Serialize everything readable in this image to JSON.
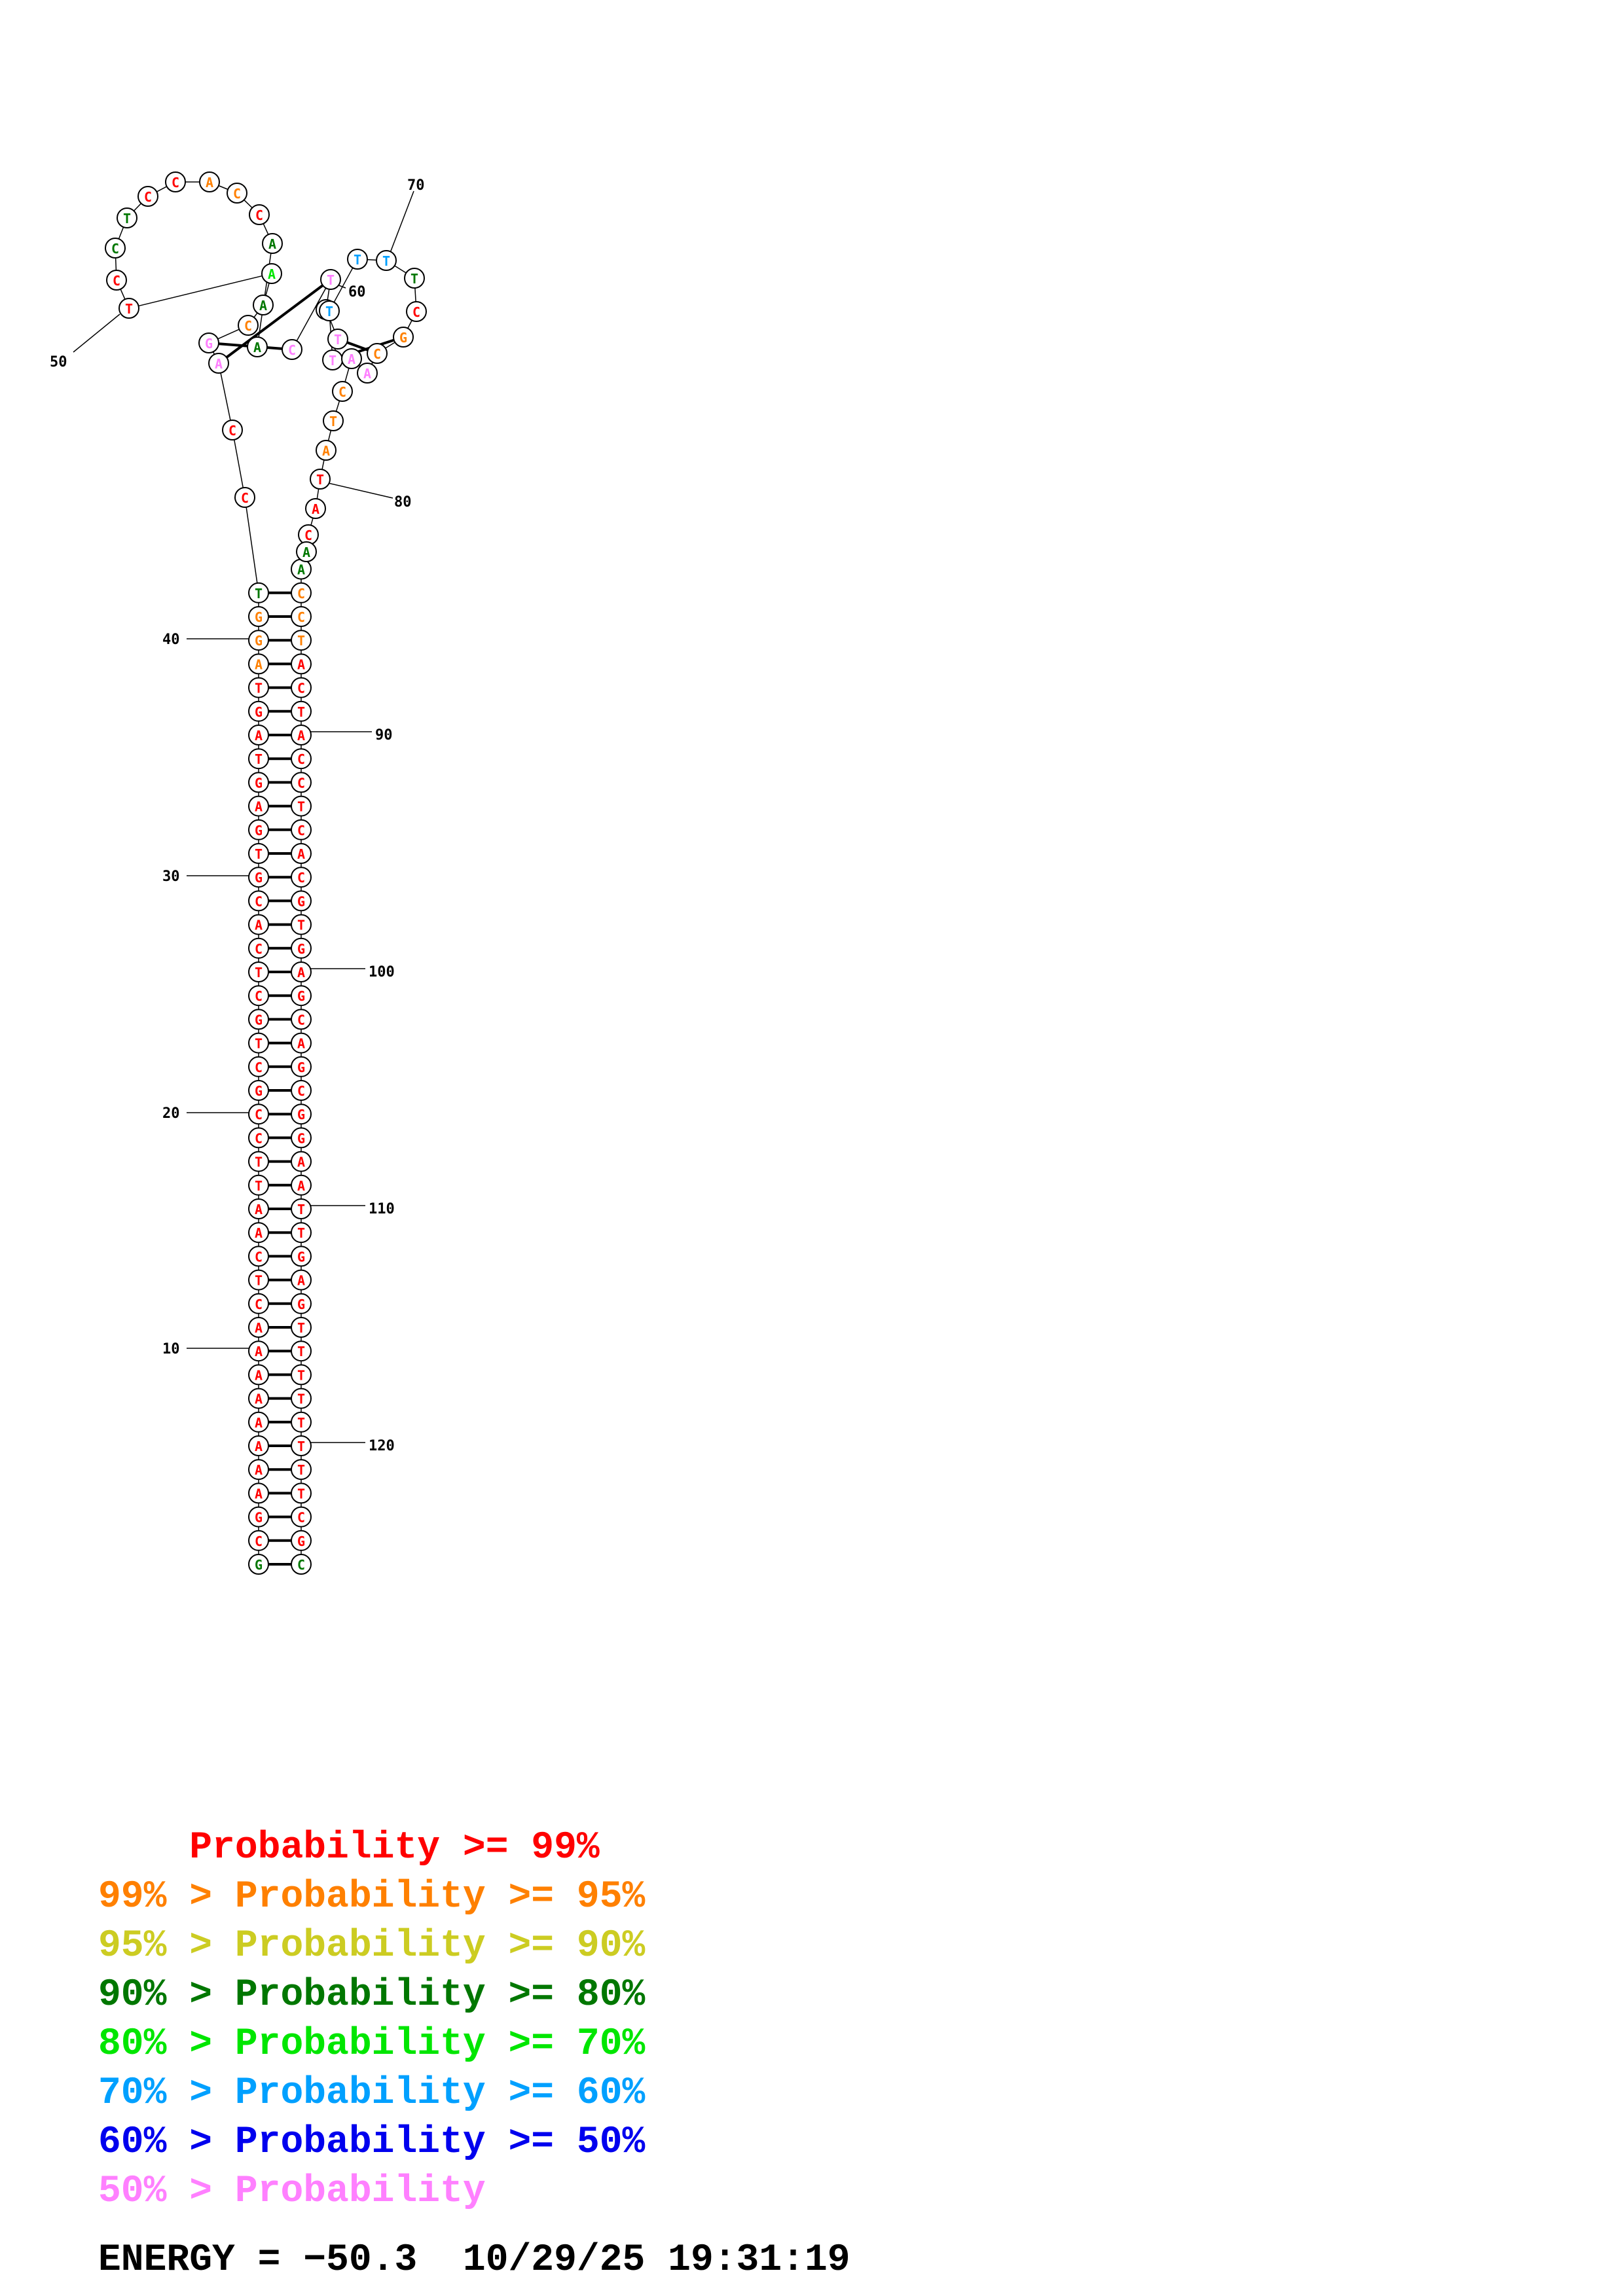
{
  "colors": {
    "p99": "#ff0000",
    "p95": "#ff8000",
    "p90": "#cccc22",
    "p80": "#007700",
    "p70": "#00e600",
    "p60": "#00a0ff",
    "p50": "#0000ee",
    "plow": "#ff80ff"
  },
  "structure": {
    "left_strand": [
      {
        "n": 1,
        "b": "G",
        "c": "p80"
      },
      {
        "n": 2,
        "b": "C",
        "c": "p99"
      },
      {
        "n": 3,
        "b": "G",
        "c": "p99"
      },
      {
        "n": 4,
        "b": "A",
        "c": "p99"
      },
      {
        "n": 5,
        "b": "A",
        "c": "p99"
      },
      {
        "n": 6,
        "b": "A",
        "c": "p99"
      },
      {
        "n": 7,
        "b": "A",
        "c": "p99"
      },
      {
        "n": 8,
        "b": "A",
        "c": "p99"
      },
      {
        "n": 9,
        "b": "A",
        "c": "p99"
      },
      {
        "n": 10,
        "b": "A",
        "c": "p99"
      },
      {
        "n": 11,
        "b": "A",
        "c": "p99"
      },
      {
        "n": 12,
        "b": "C",
        "c": "p99"
      },
      {
        "n": 13,
        "b": "T",
        "c": "p99"
      },
      {
        "n": 14,
        "b": "C",
        "c": "p99"
      },
      {
        "n": 15,
        "b": "A",
        "c": "p99"
      },
      {
        "n": 16,
        "b": "A",
        "c": "p99"
      },
      {
        "n": 17,
        "b": "T",
        "c": "p99"
      },
      {
        "n": 18,
        "b": "T",
        "c": "p99"
      },
      {
        "n": 19,
        "b": "C",
        "c": "p99"
      },
      {
        "n": 20,
        "b": "C",
        "c": "p99"
      },
      {
        "n": 21,
        "b": "G",
        "c": "p99"
      },
      {
        "n": 22,
        "b": "C",
        "c": "p99"
      },
      {
        "n": 23,
        "b": "T",
        "c": "p99"
      },
      {
        "n": 24,
        "b": "G",
        "c": "p99"
      },
      {
        "n": 25,
        "b": "C",
        "c": "p99"
      },
      {
        "n": 26,
        "b": "T",
        "c": "p99"
      },
      {
        "n": 27,
        "b": "C",
        "c": "p99"
      },
      {
        "n": 28,
        "b": "A",
        "c": "p99"
      },
      {
        "n": 29,
        "b": "C",
        "c": "p99"
      },
      {
        "n": 30,
        "b": "G",
        "c": "p99"
      },
      {
        "n": 31,
        "b": "T",
        "c": "p99"
      },
      {
        "n": 32,
        "b": "G",
        "c": "p99"
      },
      {
        "n": 33,
        "b": "A",
        "c": "p99"
      },
      {
        "n": 34,
        "b": "G",
        "c": "p99"
      },
      {
        "n": 35,
        "b": "T",
        "c": "p99"
      },
      {
        "n": 36,
        "b": "A",
        "c": "p99"
      },
      {
        "n": 37,
        "b": "G",
        "c": "p99"
      },
      {
        "n": 38,
        "b": "T",
        "c": "p99"
      },
      {
        "n": 39,
        "b": "A",
        "c": "p95"
      },
      {
        "n": 40,
        "b": "G",
        "c": "p95"
      },
      {
        "n": 41,
        "b": "G",
        "c": "p95"
      },
      {
        "n": 42,
        "b": "T",
        "c": "p80"
      }
    ],
    "right_strand": [
      {
        "n": 125,
        "b": "C",
        "c": "p80"
      },
      {
        "n": 124,
        "b": "G",
        "c": "p99"
      },
      {
        "n": 123,
        "b": "C",
        "c": "p99"
      },
      {
        "n": 122,
        "b": "T",
        "c": "p99"
      },
      {
        "n": 121,
        "b": "T",
        "c": "p99"
      },
      {
        "n": 120,
        "b": "T",
        "c": "p99"
      },
      {
        "n": 119,
        "b": "T",
        "c": "p99"
      },
      {
        "n": 118,
        "b": "T",
        "c": "p99"
      },
      {
        "n": 117,
        "b": "T",
        "c": "p99"
      },
      {
        "n": 116,
        "b": "T",
        "c": "p99"
      },
      {
        "n": 115,
        "b": "T",
        "c": "p99"
      },
      {
        "n": 114,
        "b": "G",
        "c": "p99"
      },
      {
        "n": 113,
        "b": "A",
        "c": "p99"
      },
      {
        "n": 112,
        "b": "G",
        "c": "p99"
      },
      {
        "n": 111,
        "b": "T",
        "c": "p99"
      },
      {
        "n": 110,
        "b": "T",
        "c": "p99"
      },
      {
        "n": 109,
        "b": "A",
        "c": "p99"
      },
      {
        "n": 108,
        "b": "A",
        "c": "p99"
      },
      {
        "n": 107,
        "b": "G",
        "c": "p99"
      },
      {
        "n": 106,
        "b": "G",
        "c": "p99"
      },
      {
        "n": 105,
        "b": "C",
        "c": "p99"
      },
      {
        "n": 104,
        "b": "G",
        "c": "p99"
      },
      {
        "n": 103,
        "b": "A",
        "c": "p99"
      },
      {
        "n": 102,
        "b": "C",
        "c": "p99"
      },
      {
        "n": 101,
        "b": "G",
        "c": "p99"
      },
      {
        "n": 100,
        "b": "A",
        "c": "p99"
      },
      {
        "n": 99,
        "b": "G",
        "c": "p99"
      },
      {
        "n": 98,
        "b": "T",
        "c": "p99"
      },
      {
        "n": 97,
        "b": "G",
        "c": "p99"
      },
      {
        "n": 96,
        "b": "C",
        "c": "p99"
      },
      {
        "n": 95,
        "b": "A",
        "c": "p99"
      },
      {
        "n": 94,
        "b": "C",
        "c": "p99"
      },
      {
        "n": 93,
        "b": "T",
        "c": "p99"
      },
      {
        "n": 92,
        "b": "C",
        "c": "p99"
      },
      {
        "n": 91,
        "b": "C",
        "c": "p99"
      },
      {
        "n": 90,
        "b": "A",
        "c": "p99"
      },
      {
        "n": 89,
        "b": "T",
        "c": "p99"
      },
      {
        "n": 88,
        "b": "C",
        "c": "p99"
      },
      {
        "n": 87,
        "b": "A",
        "c": "p99"
      },
      {
        "n": 86,
        "b": "T",
        "c": "p95"
      },
      {
        "n": 85,
        "b": "C",
        "c": "p95"
      },
      {
        "n": 84,
        "b": "C",
        "c": "p95"
      },
      {
        "n": 83,
        "b": "A",
        "c": "p80"
      }
    ],
    "loop": [
      {
        "n": 43,
        "b": "C",
        "c": "p99"
      },
      {
        "n": 44,
        "b": "C",
        "c": "p99"
      },
      {
        "n": 45,
        "b": "A",
        "c": "plow"
      },
      {
        "n": 46,
        "b": "G",
        "c": "plow"
      },
      {
        "n": 47,
        "b": "C",
        "c": "p95"
      },
      {
        "n": 48,
        "b": "A",
        "c": "p80"
      },
      {
        "n": 49,
        "b": "A",
        "c": "p70"
      },
      {
        "n": 50,
        "b": "T",
        "c": "p99"
      },
      {
        "n": 51,
        "b": "C",
        "c": "p99"
      },
      {
        "n": 52,
        "b": "C",
        "c": "p80"
      },
      {
        "n": 53,
        "b": "T",
        "c": "p80"
      },
      {
        "n": 54,
        "b": "C",
        "c": "p99"
      },
      {
        "n": 55,
        "b": "C",
        "c": "p99"
      },
      {
        "n": 56,
        "b": "A",
        "c": "p95"
      },
      {
        "n": 57,
        "b": "C",
        "c": "p95"
      },
      {
        "n": 58,
        "b": "C",
        "c": "p99"
      },
      {
        "n": 59,
        "b": "A",
        "c": "p80"
      },
      {
        "n": 60,
        "b": "A",
        "c": "p80"
      },
      {
        "n": 61,
        "b": "C",
        "c": "plow"
      },
      {
        "n": 62,
        "b": "T",
        "c": "plow"
      },
      {
        "n": 63,
        "b": "T",
        "c": "p80"
      },
      {
        "n": 64,
        "b": "T",
        "c": "plow"
      },
      {
        "n": 65,
        "b": "T",
        "c": "plow"
      },
      {
        "n": 66,
        "b": "T",
        "c": "p60"
      },
      {
        "n": 67,
        "b": "T",
        "c": "p60"
      },
      {
        "n": 68,
        "b": "T",
        "c": "p60"
      },
      {
        "n": 69,
        "b": "T",
        "c": "p80"
      },
      {
        "n": 70,
        "b": "C",
        "c": "p99"
      },
      {
        "n": 71,
        "b": "G",
        "c": "p95"
      },
      {
        "n": 72,
        "b": "C",
        "c": "p95"
      },
      {
        "n": 73,
        "b": "A",
        "c": "plow"
      },
      {
        "n": 74,
        "b": "A",
        "c": "plow"
      },
      {
        "n": 75,
        "b": "C",
        "c": "p95"
      },
      {
        "n": 76,
        "b": "T",
        "c": "p95"
      },
      {
        "n": 77,
        "b": "A",
        "c": "p95"
      },
      {
        "n": 78,
        "b": "T",
        "c": "p99"
      },
      {
        "n": 79,
        "b": "A",
        "c": "p99"
      },
      {
        "n": 80,
        "b": "C",
        "c": "p99"
      },
      {
        "n": 81,
        "b": "A",
        "c": "p80"
      }
    ],
    "position_labels": [
      "10",
      "20",
      "30",
      "40",
      "50",
      "60",
      "70",
      "80",
      "90",
      "100",
      "110",
      "120"
    ]
  },
  "legend": [
    {
      "prefix": "    ",
      "text": "Probability >= 99%",
      "color": "p99"
    },
    {
      "prefix": "99% > ",
      "text": "Probability >= 95%",
      "color": "p95"
    },
    {
      "prefix": "95% > ",
      "text": "Probability >= 90%",
      "color": "p90"
    },
    {
      "prefix": "90% > ",
      "text": "Probability >= 80%",
      "color": "p80"
    },
    {
      "prefix": "80% > ",
      "text": "Probability >= 70%",
      "color": "p70"
    },
    {
      "prefix": "70% > ",
      "text": "Probability >= 60%",
      "color": "p60"
    },
    {
      "prefix": "60% > ",
      "text": "Probability >= 50%",
      "color": "p50"
    },
    {
      "prefix": "50% > ",
      "text": "Probability",
      "color": "plow"
    }
  ],
  "footer": {
    "energy": "ENERGY = −50.3  10/29/25 19:31:19"
  }
}
